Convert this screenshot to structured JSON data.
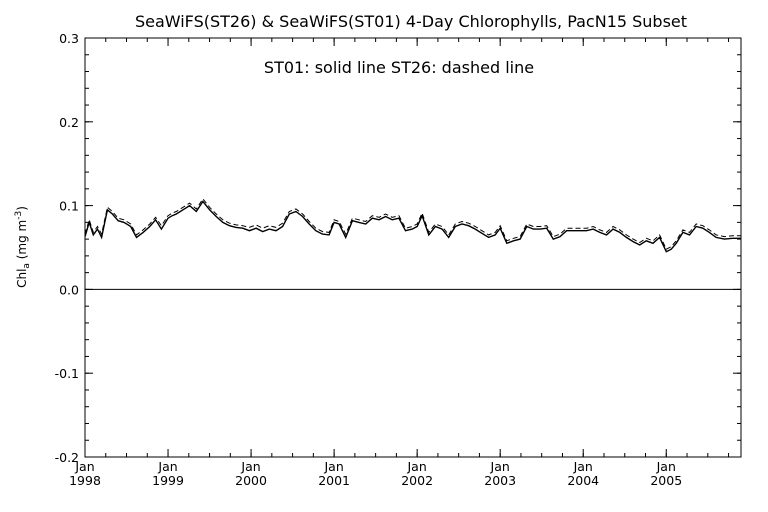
{
  "chart_data": {
    "type": "line",
    "title": "SeaWiFS(ST26) & SeaWiFS(ST01) 4-Day Chlorophylls, PacN15 Subset",
    "annotation": "ST01: solid line   ST26: dashed line",
    "ylabel": {
      "base": "Chl",
      "sub": "a",
      "units_pre": " (mg m",
      "sup": "-3",
      "units_post": ")"
    },
    "ylim": [
      -0.2,
      0.3
    ],
    "yticks": [
      -0.2,
      -0.1,
      0.0,
      0.1,
      0.2,
      0.3
    ],
    "ytick_labels": [
      "-0.2",
      "-0.1",
      "0.0",
      "0.1",
      "0.2",
      "0.3"
    ],
    "xlim": [
      1998.0,
      2005.9
    ],
    "xticks": [
      {
        "x": 1998,
        "month": "Jan",
        "year": "1998"
      },
      {
        "x": 1999,
        "month": "Jan",
        "year": "1999"
      },
      {
        "x": 2000,
        "month": "Jan",
        "year": "2000"
      },
      {
        "x": 2001,
        "month": "Jan",
        "year": "2001"
      },
      {
        "x": 2002,
        "month": "Jan",
        "year": "2002"
      },
      {
        "x": 2003,
        "month": "Jan",
        "year": "2003"
      },
      {
        "x": 2004,
        "month": "Jan",
        "year": "2004"
      },
      {
        "x": 2005,
        "month": "Jan",
        "year": "2005"
      }
    ],
    "reference_line": 0.0,
    "series": [
      {
        "name": "ST01",
        "style": "solid",
        "x": [
          1998.0,
          1998.05,
          1998.1,
          1998.15,
          1998.2,
          1998.27,
          1998.33,
          1998.4,
          1998.47,
          1998.55,
          1998.62,
          1998.7,
          1998.78,
          1998.85,
          1998.92,
          1999.0,
          1999.05,
          1999.1,
          1999.18,
          1999.26,
          1999.34,
          1999.42,
          1999.5,
          1999.58,
          1999.66,
          1999.74,
          1999.82,
          1999.9,
          1999.98,
          2000.06,
          2000.14,
          2000.22,
          2000.3,
          2000.38,
          2000.46,
          2000.54,
          2000.62,
          2000.7,
          2000.78,
          2000.86,
          2000.94,
          2001.0,
          2001.06,
          2001.14,
          2001.22,
          2001.3,
          2001.38,
          2001.46,
          2001.54,
          2001.62,
          2001.7,
          2001.78,
          2001.86,
          2001.94,
          2002.0,
          2002.06,
          2002.14,
          2002.22,
          2002.3,
          2002.38,
          2002.46,
          2002.54,
          2002.62,
          2002.7,
          2002.78,
          2002.86,
          2002.94,
          2003.0,
          2003.08,
          2003.16,
          2003.24,
          2003.32,
          2003.4,
          2003.48,
          2003.56,
          2003.64,
          2003.72,
          2003.8,
          2003.88,
          2003.96,
          2004.04,
          2004.12,
          2004.2,
          2004.28,
          2004.36,
          2004.44,
          2004.52,
          2004.6,
          2004.68,
          2004.76,
          2004.84,
          2004.92,
          2005.0,
          2005.06,
          2005.12,
          2005.2,
          2005.28,
          2005.36,
          2005.44,
          2005.52,
          2005.6,
          2005.7,
          2005.8,
          2005.9
        ],
        "y": [
          0.063,
          0.08,
          0.065,
          0.072,
          0.062,
          0.095,
          0.09,
          0.082,
          0.08,
          0.075,
          0.062,
          0.068,
          0.075,
          0.083,
          0.072,
          0.085,
          0.088,
          0.09,
          0.095,
          0.1,
          0.093,
          0.105,
          0.095,
          0.087,
          0.08,
          0.076,
          0.074,
          0.073,
          0.07,
          0.073,
          0.069,
          0.072,
          0.07,
          0.075,
          0.09,
          0.093,
          0.087,
          0.078,
          0.07,
          0.066,
          0.065,
          0.08,
          0.078,
          0.062,
          0.082,
          0.08,
          0.078,
          0.085,
          0.083,
          0.087,
          0.083,
          0.085,
          0.07,
          0.072,
          0.075,
          0.088,
          0.065,
          0.075,
          0.072,
          0.062,
          0.075,
          0.078,
          0.076,
          0.072,
          0.067,
          0.062,
          0.065,
          0.073,
          0.055,
          0.058,
          0.06,
          0.075,
          0.072,
          0.072,
          0.073,
          0.06,
          0.063,
          0.07,
          0.07,
          0.07,
          0.07,
          0.072,
          0.068,
          0.065,
          0.072,
          0.068,
          0.062,
          0.057,
          0.053,
          0.058,
          0.055,
          0.062,
          0.045,
          0.048,
          0.055,
          0.068,
          0.065,
          0.075,
          0.073,
          0.068,
          0.062,
          0.06,
          0.061,
          0.061
        ]
      },
      {
        "name": "ST26",
        "style": "dashed",
        "x": [
          1998.0,
          1998.05,
          1998.1,
          1998.15,
          1998.2,
          1998.27,
          1998.33,
          1998.4,
          1998.47,
          1998.55,
          1998.62,
          1998.7,
          1998.78,
          1998.85,
          1998.92,
          1999.0,
          1999.05,
          1999.1,
          1999.18,
          1999.26,
          1999.34,
          1999.42,
          1999.5,
          1999.58,
          1999.66,
          1999.74,
          1999.82,
          1999.9,
          1999.98,
          2000.06,
          2000.14,
          2000.22,
          2000.3,
          2000.38,
          2000.46,
          2000.54,
          2000.62,
          2000.7,
          2000.78,
          2000.86,
          2000.94,
          2001.0,
          2001.06,
          2001.14,
          2001.22,
          2001.3,
          2001.38,
          2001.46,
          2001.54,
          2001.62,
          2001.7,
          2001.78,
          2001.86,
          2001.94,
          2002.0,
          2002.06,
          2002.14,
          2002.22,
          2002.3,
          2002.38,
          2002.46,
          2002.54,
          2002.62,
          2002.7,
          2002.78,
          2002.86,
          2002.94,
          2003.0,
          2003.08,
          2003.16,
          2003.24,
          2003.32,
          2003.4,
          2003.48,
          2003.56,
          2003.64,
          2003.72,
          2003.8,
          2003.88,
          2003.96,
          2004.04,
          2004.12,
          2004.2,
          2004.28,
          2004.36,
          2004.44,
          2004.52,
          2004.6,
          2004.68,
          2004.76,
          2004.84,
          2004.92,
          2005.0,
          2005.06,
          2005.12,
          2005.2,
          2005.28,
          2005.36,
          2005.44,
          2005.52,
          2005.6,
          2005.7,
          2005.8,
          2005.9
        ],
        "y": [
          0.066,
          0.083,
          0.068,
          0.075,
          0.066,
          0.098,
          0.093,
          0.085,
          0.083,
          0.078,
          0.065,
          0.071,
          0.078,
          0.086,
          0.076,
          0.088,
          0.091,
          0.093,
          0.098,
          0.103,
          0.096,
          0.108,
          0.098,
          0.09,
          0.083,
          0.079,
          0.077,
          0.076,
          0.074,
          0.077,
          0.073,
          0.076,
          0.074,
          0.079,
          0.093,
          0.096,
          0.09,
          0.081,
          0.073,
          0.069,
          0.068,
          0.083,
          0.081,
          0.066,
          0.085,
          0.083,
          0.081,
          0.088,
          0.086,
          0.09,
          0.086,
          0.088,
          0.073,
          0.075,
          0.078,
          0.091,
          0.068,
          0.078,
          0.075,
          0.065,
          0.078,
          0.081,
          0.079,
          0.075,
          0.07,
          0.065,
          0.068,
          0.076,
          0.058,
          0.061,
          0.063,
          0.078,
          0.075,
          0.075,
          0.076,
          0.063,
          0.066,
          0.073,
          0.073,
          0.073,
          0.073,
          0.075,
          0.071,
          0.068,
          0.075,
          0.071,
          0.065,
          0.06,
          0.056,
          0.061,
          0.058,
          0.065,
          0.048,
          0.051,
          0.058,
          0.071,
          0.068,
          0.078,
          0.076,
          0.071,
          0.065,
          0.063,
          0.064,
          0.064
        ]
      }
    ],
    "grid": false,
    "legend": "none"
  }
}
